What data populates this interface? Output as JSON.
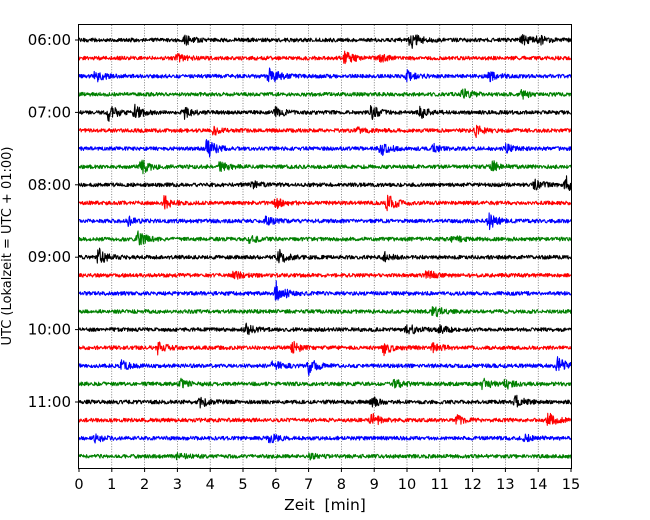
{
  "chart_data": {
    "type": "line",
    "xlabel": "Zeit  [min]",
    "ylabel": "UTC (Lokalzeit = UTC + 01:00)",
    "xlim": [
      0,
      15
    ],
    "x_ticks": [
      "0",
      "1",
      "2",
      "3",
      "4",
      "5",
      "6",
      "7",
      "8",
      "9",
      "10",
      "11",
      "12",
      "13",
      "14",
      "15"
    ],
    "y_tick_labels": [
      {
        "label": "06:00",
        "trace_index": 0
      },
      {
        "label": "07:00",
        "trace_index": 4
      },
      {
        "label": "08:00",
        "trace_index": 8
      },
      {
        "label": "09:00",
        "trace_index": 12
      },
      {
        "label": "10:00",
        "trace_index": 16
      },
      {
        "label": "11:00",
        "trace_index": 20
      }
    ],
    "grid_x": true,
    "traces_per_hour": 4,
    "trace_minutes": 15,
    "colors": [
      "#000000",
      "#ff0000",
      "#0000ff",
      "#008000"
    ],
    "traces": [
      {
        "start": "06:00",
        "events": [
          [
            3.25,
            1.0
          ],
          [
            10.1,
            1.6
          ],
          [
            13.5,
            0.9
          ],
          [
            14.0,
            0.8
          ]
        ]
      },
      {
        "start": "06:15",
        "events": [
          [
            3.0,
            0.8
          ],
          [
            8.1,
            1.3
          ],
          [
            9.2,
            0.6
          ]
        ]
      },
      {
        "start": "06:30",
        "events": [
          [
            0.5,
            1.0
          ],
          [
            5.8,
            1.8
          ],
          [
            10.0,
            0.9
          ],
          [
            12.5,
            0.8
          ]
        ]
      },
      {
        "start": "06:45",
        "events": [
          [
            11.7,
            1.0
          ],
          [
            13.5,
            0.7
          ]
        ]
      },
      {
        "start": "07:00",
        "events": [
          [
            0.9,
            1.4
          ],
          [
            1.7,
            1.2
          ],
          [
            3.2,
            1.0
          ],
          [
            6.0,
            0.9
          ],
          [
            8.9,
            1.2
          ],
          [
            10.4,
            1.0
          ]
        ]
      },
      {
        "start": "07:15",
        "events": [
          [
            4.1,
            0.7
          ],
          [
            8.5,
            0.6
          ],
          [
            12.1,
            1.0
          ]
        ]
      },
      {
        "start": "07:30",
        "events": [
          [
            3.9,
            1.7
          ],
          [
            9.2,
            1.2
          ],
          [
            10.8,
            0.8
          ],
          [
            13.0,
            0.7
          ]
        ]
      },
      {
        "start": "07:45",
        "events": [
          [
            1.9,
            1.4
          ],
          [
            4.3,
            1.0
          ],
          [
            12.6,
            1.0
          ]
        ]
      },
      {
        "start": "08:00",
        "events": [
          [
            5.3,
            0.6
          ],
          [
            13.9,
            0.8
          ],
          [
            14.85,
            1.4
          ]
        ]
      },
      {
        "start": "08:15",
        "events": [
          [
            2.6,
            1.2
          ],
          [
            6.0,
            0.9
          ],
          [
            9.4,
            1.7
          ]
        ]
      },
      {
        "start": "08:30",
        "events": [
          [
            1.5,
            0.7
          ],
          [
            5.7,
            0.7
          ],
          [
            12.5,
            1.4
          ]
        ]
      },
      {
        "start": "08:45",
        "events": [
          [
            1.8,
            1.4
          ],
          [
            5.2,
            0.6
          ],
          [
            11.4,
            0.6
          ]
        ]
      },
      {
        "start": "09:00",
        "events": [
          [
            0.6,
            1.5
          ],
          [
            6.1,
            1.3
          ],
          [
            9.3,
            0.8
          ]
        ]
      },
      {
        "start": "09:15",
        "events": [
          [
            4.7,
            0.8
          ],
          [
            10.6,
            0.9
          ]
        ]
      },
      {
        "start": "09:30",
        "events": [
          [
            6.0,
            2.1
          ]
        ]
      },
      {
        "start": "09:45",
        "events": [
          [
            10.8,
            1.1
          ]
        ]
      },
      {
        "start": "10:00",
        "events": [
          [
            5.1,
            1.0
          ],
          [
            10.0,
            1.2
          ],
          [
            11.0,
            0.7
          ]
        ]
      },
      {
        "start": "10:15",
        "events": [
          [
            2.4,
            1.0
          ],
          [
            6.5,
            1.1
          ],
          [
            9.3,
            1.2
          ],
          [
            10.8,
            0.8
          ]
        ]
      },
      {
        "start": "10:30",
        "events": [
          [
            1.3,
            0.8
          ],
          [
            5.9,
            1.1
          ],
          [
            7.0,
            1.5
          ],
          [
            14.6,
            1.5
          ]
        ]
      },
      {
        "start": "10:45",
        "events": [
          [
            3.1,
            0.7
          ],
          [
            9.6,
            0.9
          ],
          [
            12.3,
            1.0
          ],
          [
            13.0,
            0.8
          ]
        ]
      },
      {
        "start": "11:00",
        "events": [
          [
            3.7,
            0.9
          ],
          [
            8.9,
            1.0
          ],
          [
            13.3,
            1.1
          ]
        ]
      },
      {
        "start": "11:15",
        "events": [
          [
            8.9,
            1.5
          ],
          [
            11.5,
            0.8
          ],
          [
            14.3,
            1.3
          ]
        ]
      },
      {
        "start": "11:30",
        "events": [
          [
            0.5,
            0.6
          ],
          [
            5.8,
            0.8
          ],
          [
            13.6,
            0.6
          ]
        ]
      },
      {
        "start": "11:45",
        "events": [
          [
            3.0,
            0.5
          ],
          [
            7.0,
            0.5
          ]
        ]
      }
    ]
  }
}
